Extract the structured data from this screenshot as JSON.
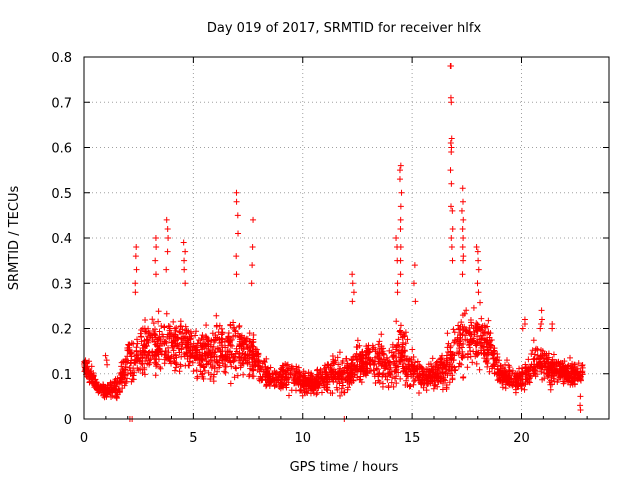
{
  "chart_data": {
    "type": "scatter",
    "title": "Day 019 of 2017, SRMTID for receiver hlfx",
    "xlabel": "GPS time / hours",
    "ylabel": "SRMTID / TECUs",
    "xlim": [
      0,
      24
    ],
    "ylim": [
      0,
      0.8
    ],
    "xticks": [
      0,
      5,
      10,
      15,
      20
    ],
    "yticks": [
      0,
      0.1,
      0.2,
      0.3,
      0.4,
      0.5,
      0.6,
      0.7,
      0.8
    ],
    "xtick_labels": [
      "0",
      "5",
      "10",
      "15",
      "20"
    ],
    "ytick_labels": [
      "0",
      "0.1",
      "0.2",
      "0.3",
      "0.4",
      "0.5",
      "0.6",
      "0.7",
      "0.8"
    ],
    "grid": true,
    "marker": "+",
    "color": "#ff0000",
    "envelope": {
      "description": "Estimated local mean and spread of SRMTID vs GPS hour",
      "x": [
        0.0,
        0.3,
        0.6,
        1.0,
        1.5,
        2.0,
        2.5,
        3.0,
        3.5,
        4.0,
        4.5,
        5.0,
        5.5,
        6.0,
        6.5,
        7.0,
        7.5,
        8.0,
        8.5,
        9.0,
        9.5,
        10.0,
        10.5,
        11.0,
        11.5,
        12.0,
        12.5,
        13.0,
        13.5,
        14.0,
        14.5,
        15.0,
        15.5,
        16.0,
        16.5,
        17.0,
        17.5,
        18.0,
        18.5,
        19.0,
        19.5,
        20.0,
        20.5,
        21.0,
        21.5,
        22.0,
        22.5,
        22.8
      ],
      "mean": [
        0.12,
        0.1,
        0.07,
        0.06,
        0.07,
        0.12,
        0.15,
        0.17,
        0.16,
        0.16,
        0.17,
        0.15,
        0.14,
        0.15,
        0.15,
        0.16,
        0.15,
        0.12,
        0.09,
        0.09,
        0.1,
        0.08,
        0.08,
        0.09,
        0.1,
        0.1,
        0.12,
        0.13,
        0.13,
        0.12,
        0.15,
        0.11,
        0.09,
        0.1,
        0.11,
        0.16,
        0.18,
        0.18,
        0.16,
        0.1,
        0.09,
        0.09,
        0.12,
        0.12,
        0.11,
        0.1,
        0.1,
        0.1
      ],
      "spread": [
        0.04,
        0.03,
        0.02,
        0.02,
        0.04,
        0.08,
        0.09,
        0.1,
        0.1,
        0.09,
        0.09,
        0.07,
        0.08,
        0.09,
        0.1,
        0.1,
        0.09,
        0.06,
        0.04,
        0.04,
        0.05,
        0.04,
        0.04,
        0.05,
        0.06,
        0.06,
        0.07,
        0.07,
        0.07,
        0.08,
        0.12,
        0.06,
        0.04,
        0.05,
        0.07,
        0.12,
        0.11,
        0.1,
        0.07,
        0.04,
        0.04,
        0.04,
        0.06,
        0.06,
        0.05,
        0.04,
        0.04,
        0.04
      ],
      "density_points": 2600,
      "x_range": [
        0.0,
        22.8
      ]
    },
    "spikes": [
      {
        "x": 1.0,
        "values": [
          0.14,
          0.13,
          0.12
        ]
      },
      {
        "x": 2.4,
        "values": [
          0.38,
          0.36,
          0.33,
          0.3,
          0.28
        ]
      },
      {
        "x": 3.3,
        "values": [
          0.4,
          0.38,
          0.35,
          0.32
        ]
      },
      {
        "x": 3.8,
        "values": [
          0.44,
          0.42,
          0.4,
          0.37,
          0.33
        ]
      },
      {
        "x": 4.6,
        "values": [
          0.39,
          0.37,
          0.35,
          0.33,
          0.3
        ]
      },
      {
        "x": 7.0,
        "values": [
          0.5,
          0.48,
          0.45,
          0.41,
          0.36,
          0.32
        ]
      },
      {
        "x": 7.7,
        "values": [
          0.44,
          0.38,
          0.34,
          0.3
        ]
      },
      {
        "x": 12.3,
        "values": [
          0.32,
          0.3,
          0.28,
          0.26
        ]
      },
      {
        "x": 14.3,
        "values": [
          0.4,
          0.38,
          0.35,
          0.3,
          0.28
        ]
      },
      {
        "x": 14.5,
        "values": [
          0.56,
          0.55,
          0.53,
          0.5,
          0.47,
          0.44,
          0.42,
          0.38,
          0.35,
          0.32
        ]
      },
      {
        "x": 15.1,
        "values": [
          0.34,
          0.3,
          0.26
        ]
      },
      {
        "x": 16.8,
        "values": [
          0.78,
          0.78,
          0.71,
          0.7,
          0.62,
          0.61,
          0.6,
          0.59,
          0.55,
          0.52,
          0.47,
          0.46,
          0.42,
          0.4,
          0.38,
          0.35
        ]
      },
      {
        "x": 17.3,
        "values": [
          0.51,
          0.48,
          0.46,
          0.44,
          0.42,
          0.4,
          0.38,
          0.36,
          0.35,
          0.32
        ]
      },
      {
        "x": 18.0,
        "values": [
          0.38,
          0.37,
          0.35,
          0.33,
          0.3,
          0.28
        ]
      },
      {
        "x": 19.3,
        "values": [
          0.12,
          0.13
        ]
      },
      {
        "x": 20.1,
        "values": [
          0.22,
          0.21,
          0.2
        ]
      },
      {
        "x": 20.9,
        "values": [
          0.24,
          0.22,
          0.21,
          0.2
        ]
      },
      {
        "x": 21.4,
        "values": [
          0.21,
          0.2
        ]
      },
      {
        "x": 22.7,
        "values": [
          0.05,
          0.03,
          0.02
        ]
      }
    ],
    "zero_markers_x": [
      2.1,
      2.2,
      11.9
    ]
  }
}
